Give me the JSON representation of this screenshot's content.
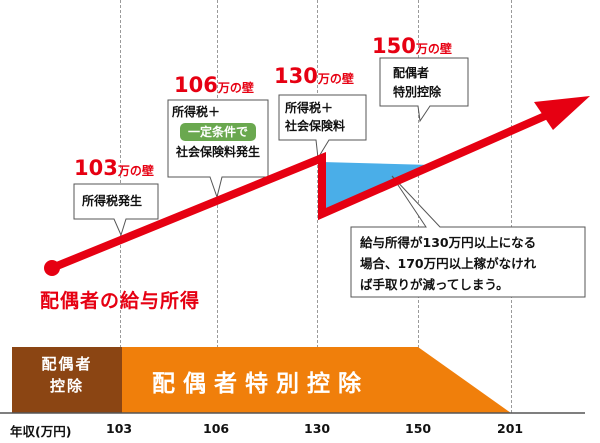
{
  "walls": [
    {
      "value": "103",
      "suffix": "万の壁"
    },
    {
      "value": "106",
      "suffix": "万の壁"
    },
    {
      "value": "130",
      "suffix": "万の壁"
    },
    {
      "value": "150",
      "suffix": "万の壁"
    }
  ],
  "callouts": {
    "w103": {
      "line1": "所得税発生"
    },
    "w106": {
      "line1": "所得税＋",
      "tag": "一定条件で",
      "line3": "社会保険料発生"
    },
    "w130": {
      "line1": "所得税＋",
      "line2": "社会保険料"
    },
    "w150": {
      "line1": "配偶者",
      "line2": "特別控除"
    }
  },
  "note": {
    "line1": "給与所得が130万円以上になる",
    "line2": "場合、170万円以上稼がなけれ",
    "line3": "ば手取りが減ってしまう。"
  },
  "income_label": "配偶者の給与所得",
  "deduction_band": {
    "spousal_line1": "配偶者",
    "spousal_line2": "控除",
    "special": "配偶者特別控除"
  },
  "axis": {
    "title": "年収(万円)",
    "ticks": [
      "103",
      "106",
      "130",
      "150",
      "201"
    ]
  },
  "colors": {
    "line": "#e60012",
    "spousal_band": "#8b4513",
    "special_band": "#f07f0b",
    "shaded_area": "#4aaee8",
    "tag": "#6aa84f"
  }
}
